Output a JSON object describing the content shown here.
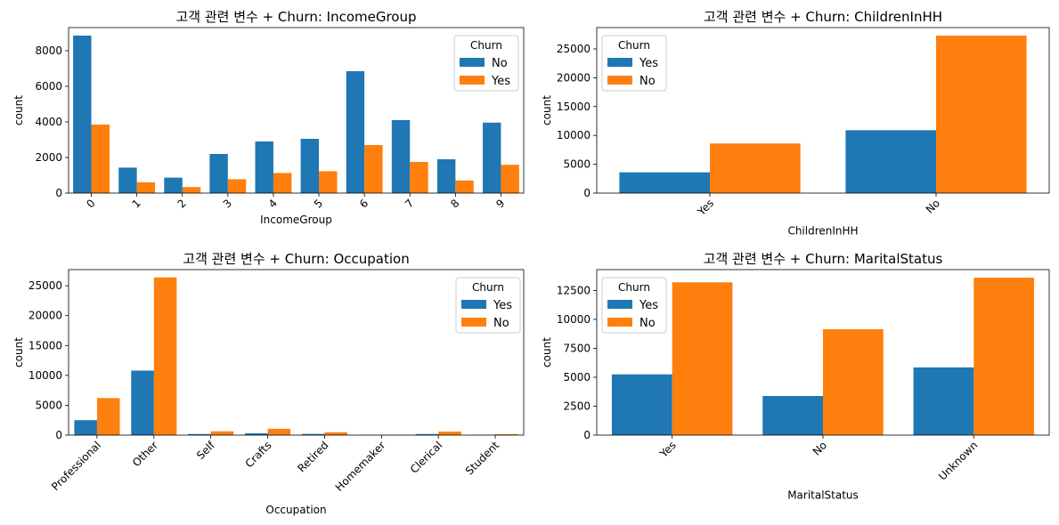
{
  "chart_data": [
    {
      "type": "bar",
      "title": "고객 관련 변수 + Churn: IncomeGroup",
      "xlabel": "IncomeGroup",
      "ylabel": "count",
      "categories": [
        "0",
        "1",
        "2",
        "3",
        "4",
        "5",
        "6",
        "7",
        "8",
        "9"
      ],
      "ylim": [
        0,
        9300
      ],
      "yticks": [
        0,
        2000,
        4000,
        6000,
        8000
      ],
      "legend": {
        "title": "Churn",
        "location": "upper right"
      },
      "series": [
        {
          "name": "No",
          "color": "#1f77b4",
          "values": [
            8850,
            1430,
            870,
            2200,
            2900,
            3050,
            6850,
            4100,
            1900,
            3960
          ]
        },
        {
          "name": "Yes",
          "color": "#ff7f0e",
          "values": [
            3850,
            610,
            340,
            780,
            1130,
            1230,
            2700,
            1750,
            710,
            1590
          ]
        }
      ],
      "x_rotation": 45
    },
    {
      "type": "bar",
      "title": "고객 관련 변수 + Churn: ChildrenInHH",
      "xlabel": "ChildrenInHH",
      "ylabel": "count",
      "categories": [
        "Yes",
        "No"
      ],
      "ylim": [
        0,
        28700
      ],
      "yticks": [
        0,
        5000,
        10000,
        15000,
        20000,
        25000
      ],
      "legend": {
        "title": "Churn",
        "location": "upper left"
      },
      "series": [
        {
          "name": "Yes",
          "color": "#1f77b4",
          "values": [
            3600,
            10900
          ]
        },
        {
          "name": "No",
          "color": "#ff7f0e",
          "values": [
            8600,
            27300
          ]
        }
      ],
      "x_rotation": 45
    },
    {
      "type": "bar",
      "title": "고객 관련 변수 + Churn: Occupation",
      "xlabel": "Occupation",
      "ylabel": "count",
      "categories": [
        "Professional",
        "Other",
        "Self",
        "Crafts",
        "Retired",
        "Homemaker",
        "Clerical",
        "Student"
      ],
      "ylim": [
        0,
        27700
      ],
      "yticks": [
        0,
        5000,
        10000,
        15000,
        20000,
        25000
      ],
      "legend": {
        "title": "Churn",
        "location": "upper right"
      },
      "series": [
        {
          "name": "Yes",
          "color": "#1f77b4",
          "values": [
            2500,
            10800,
            180,
            300,
            200,
            30,
            180,
            50
          ]
        },
        {
          "name": "No",
          "color": "#ff7f0e",
          "values": [
            6200,
            26400,
            640,
            1060,
            480,
            70,
            600,
            170
          ]
        }
      ],
      "x_rotation": 45
    },
    {
      "type": "bar",
      "title": "고객 관련 변수 + Churn: MaritalStatus",
      "xlabel": "MaritalStatus",
      "ylabel": "count",
      "categories": [
        "Yes",
        "No",
        "Unknown"
      ],
      "ylim": [
        0,
        14300
      ],
      "yticks": [
        0,
        2500,
        5000,
        7500,
        10000,
        12500
      ],
      "legend": {
        "title": "Churn",
        "location": "upper left"
      },
      "series": [
        {
          "name": "Yes",
          "color": "#1f77b4",
          "values": [
            5250,
            3380,
            5850
          ]
        },
        {
          "name": "No",
          "color": "#ff7f0e",
          "values": [
            13200,
            9150,
            13600
          ]
        }
      ],
      "x_rotation": 45
    }
  ]
}
